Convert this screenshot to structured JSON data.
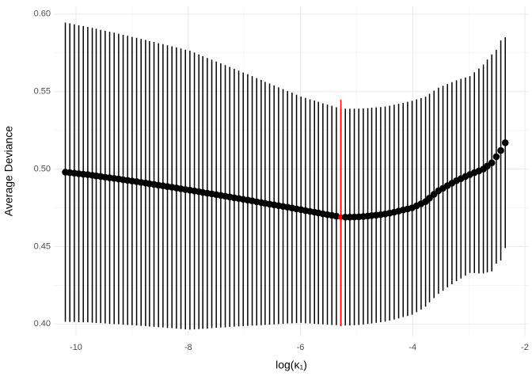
{
  "chart_data": {
    "type": "errorbar",
    "x_label": "log(κ₁)",
    "y_label": "Average Deviance",
    "x": [
      -10.19,
      -10.11,
      -10.03,
      -9.95,
      -9.87,
      -9.79,
      -9.71,
      -9.64,
      -9.56,
      -9.48,
      -9.4,
      -9.32,
      -9.24,
      -9.16,
      -9.08,
      -9.0,
      -8.92,
      -8.84,
      -8.76,
      -8.69,
      -8.61,
      -8.53,
      -8.45,
      -8.37,
      -8.29,
      -8.21,
      -8.13,
      -8.05,
      -7.97,
      -7.89,
      -7.81,
      -7.74,
      -7.66,
      -7.58,
      -7.5,
      -7.42,
      -7.34,
      -7.26,
      -7.18,
      -7.1,
      -7.02,
      -6.94,
      -6.86,
      -6.78,
      -6.7,
      -6.63,
      -6.55,
      -6.47,
      -6.39,
      -6.31,
      -6.23,
      -6.15,
      -6.07,
      -5.99,
      -5.91,
      -5.83,
      -5.75,
      -5.68,
      -5.6,
      -5.52,
      -5.44,
      -5.36,
      -5.28,
      -5.2,
      -5.12,
      -5.04,
      -4.96,
      -4.88,
      -4.8,
      -4.73,
      -4.65,
      -4.57,
      -4.49,
      -4.41,
      -4.33,
      -4.25,
      -4.17,
      -4.09,
      -4.01,
      -3.93,
      -3.85,
      -3.77,
      -3.7,
      -3.62,
      -3.54,
      -3.46,
      -3.38,
      -3.3,
      -3.22,
      -3.14,
      -3.06,
      -2.98,
      -2.9,
      -2.82,
      -2.74,
      -2.67,
      -2.59,
      -2.51,
      -2.43,
      -2.35
    ],
    "series": [
      {
        "color": "#000000",
        "values": [
          0.498,
          0.4977,
          0.4974,
          0.497,
          0.4967,
          0.4964,
          0.496,
          0.4956,
          0.4952,
          0.4948,
          0.4944,
          0.494,
          0.4936,
          0.4931,
          0.4927,
          0.4923,
          0.4919,
          0.4914,
          0.491,
          0.4905,
          0.4901,
          0.4896,
          0.4892,
          0.4887,
          0.4883,
          0.4878,
          0.4873,
          0.4868,
          0.4864,
          0.4859,
          0.4854,
          0.4849,
          0.4844,
          0.484,
          0.4835,
          0.483,
          0.4825,
          0.482,
          0.4815,
          0.481,
          0.4805,
          0.48,
          0.4795,
          0.4789,
          0.4784,
          0.4779,
          0.4774,
          0.4769,
          0.4764,
          0.4759,
          0.4754,
          0.4749,
          0.4743,
          0.4738,
          0.4732,
          0.4727,
          0.4722,
          0.4717,
          0.4711,
          0.4706,
          0.4701,
          0.4696,
          0.469,
          0.469,
          0.469,
          0.4691,
          0.4692,
          0.4694,
          0.4697,
          0.47,
          0.4703,
          0.4706,
          0.471,
          0.4716,
          0.4722,
          0.4729,
          0.4736,
          0.4743,
          0.475,
          0.4763,
          0.4776,
          0.479,
          0.4813,
          0.4837,
          0.486,
          0.4876,
          0.4893,
          0.4909,
          0.4925,
          0.4938,
          0.4952,
          0.4965,
          0.4977,
          0.4988,
          0.5,
          0.502,
          0.504,
          0.508,
          0.512,
          0.517
        ],
        "errors": [
          0.0965,
          0.0963,
          0.096,
          0.0958,
          0.0956,
          0.0953,
          0.0951,
          0.0949,
          0.0946,
          0.0944,
          0.0942,
          0.094,
          0.0937,
          0.0935,
          0.0933,
          0.093,
          0.0928,
          0.0926,
          0.0923,
          0.0921,
          0.0919,
          0.0916,
          0.0914,
          0.0912,
          0.0909,
          0.0907,
          0.0905,
          0.0902,
          0.09,
          0.0893,
          0.0886,
          0.088,
          0.0873,
          0.0866,
          0.0859,
          0.0852,
          0.0846,
          0.0839,
          0.0832,
          0.0825,
          0.0818,
          0.0812,
          0.0805,
          0.0798,
          0.0791,
          0.0784,
          0.0778,
          0.0771,
          0.0764,
          0.0757,
          0.075,
          0.0744,
          0.0737,
          0.073,
          0.0727,
          0.0723,
          0.072,
          0.0717,
          0.0713,
          0.071,
          0.0707,
          0.0703,
          0.07,
          0.0699,
          0.0699,
          0.0698,
          0.0698,
          0.0697,
          0.0696,
          0.0696,
          0.0695,
          0.0694,
          0.0694,
          0.0693,
          0.0693,
          0.0692,
          0.0691,
          0.0691,
          0.069,
          0.0686,
          0.0682,
          0.0677,
          0.0673,
          0.0669,
          0.0665,
          0.0661,
          0.0656,
          0.0652,
          0.0648,
          0.0644,
          0.0639,
          0.0635,
          0.0648,
          0.0661,
          0.0674,
          0.0687,
          0.07,
          0.069,
          0.071,
          0.068
        ]
      }
    ],
    "vline": -5.28,
    "vline_color": "#ff0000",
    "xlim": [
      -10.395,
      -1.93
    ],
    "ylim": [
      0.392,
      0.605
    ],
    "xticks": [
      -10,
      -8,
      -6,
      -4,
      -2
    ],
    "yticks": [
      {
        "value": 0.4,
        "label": "0.40"
      },
      {
        "value": 0.45,
        "label": "0.45"
      },
      {
        "value": 0.5,
        "label": "0.50"
      },
      {
        "value": 0.55,
        "label": "0.55"
      },
      {
        "value": 0.6,
        "label": "0.60"
      }
    ],
    "xminor": [
      -9,
      -7,
      -5,
      -3
    ],
    "yminor": [
      0.425,
      0.475,
      0.525,
      0.575
    ],
    "grid": true
  }
}
